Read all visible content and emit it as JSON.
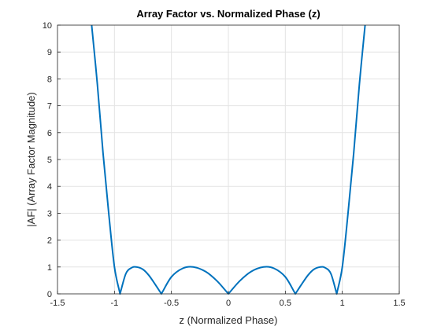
{
  "chart_data": {
    "type": "line",
    "title": "Array Factor vs. Normalized Phase (z)",
    "xlabel": "z (Normalized Phase)",
    "ylabel": "|AF| (Array Factor Magnitude)",
    "xlim": [
      -1.5,
      1.5
    ],
    "ylim": [
      0,
      10
    ],
    "xticks": [
      "-1.5",
      "-1",
      "-0.5",
      "0",
      "0.5",
      "1",
      "1.5"
    ],
    "yticks": [
      "0",
      "1",
      "2",
      "3",
      "4",
      "5",
      "6",
      "7",
      "8",
      "9",
      "10"
    ],
    "grid": true,
    "line_color": "#0072BD",
    "series": [
      {
        "x": [
          -1.2,
          -1.15,
          -1.1,
          -1.05,
          -1.0,
          -0.951,
          -0.9,
          -0.85,
          -0.809,
          -0.75,
          -0.7,
          -0.65,
          -0.588,
          -0.5,
          -0.4,
          -0.309,
          -0.2,
          -0.1,
          0.0,
          0.1,
          0.2,
          0.309,
          0.4,
          0.5,
          0.588,
          0.65,
          0.7,
          0.75,
          0.809,
          0.85,
          0.9,
          0.951,
          1.0,
          1.05,
          1.1,
          1.15,
          1.2
        ],
        "y": [
          10.0,
          7.8,
          5.23,
          2.99,
          1.0,
          0.0,
          0.75,
          0.97,
          1.0,
          0.91,
          0.7,
          0.4,
          0.0,
          0.63,
          0.95,
          1.0,
          0.83,
          0.48,
          0.0,
          0.48,
          0.83,
          1.0,
          0.95,
          0.63,
          0.0,
          0.4,
          0.7,
          0.91,
          1.0,
          0.97,
          0.75,
          0.0,
          1.0,
          2.99,
          5.23,
          7.8,
          10.0
        ]
      }
    ]
  }
}
